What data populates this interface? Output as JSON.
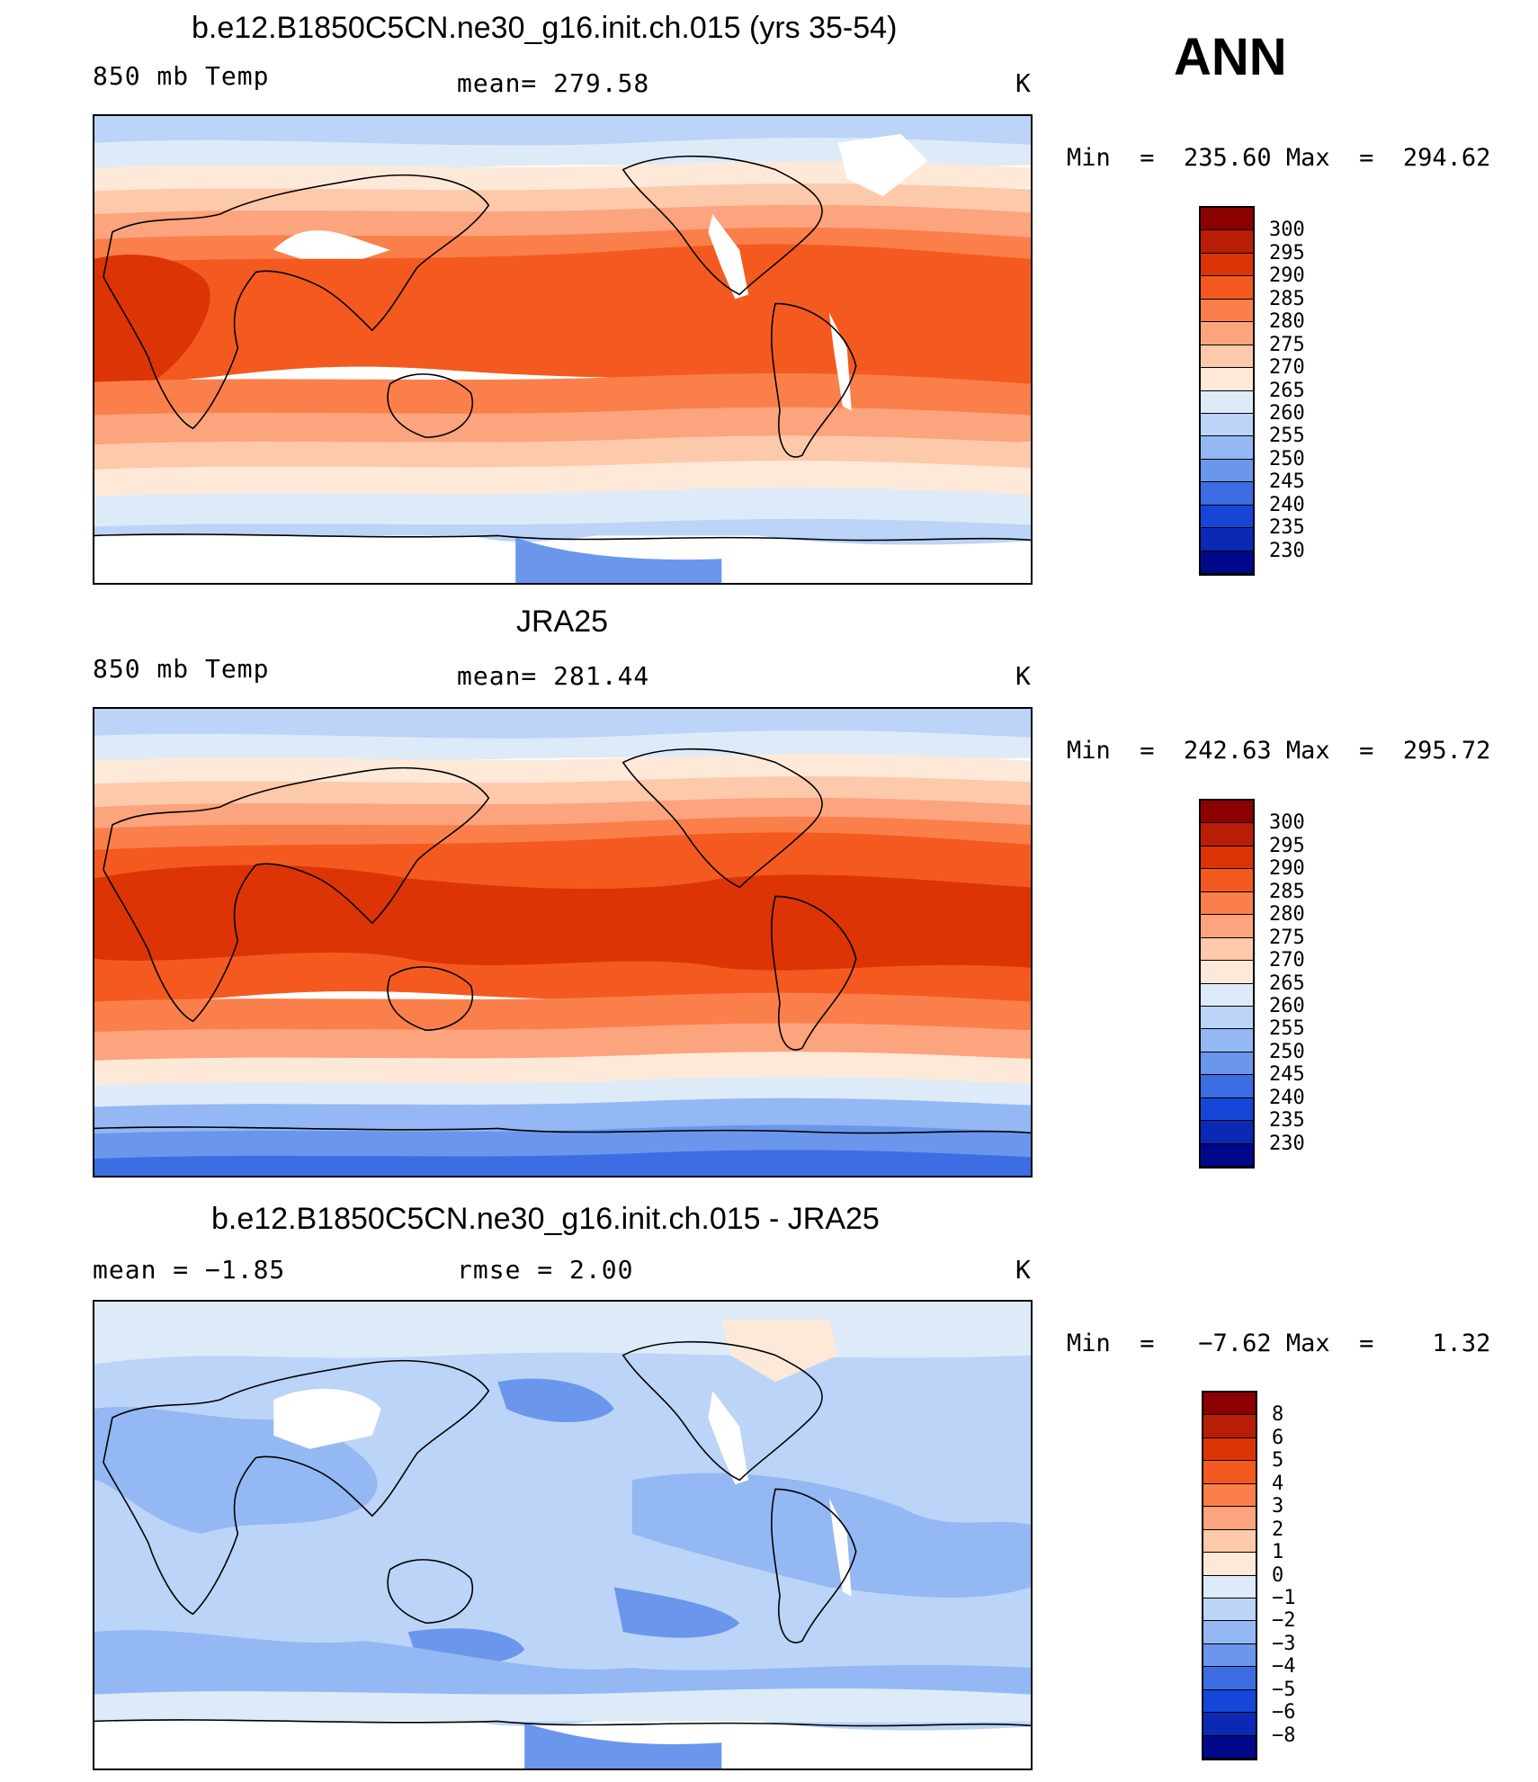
{
  "figure": {
    "season": "ANN"
  },
  "panels": [
    {
      "title": "b.e12.B1850C5CN.ne30_g16.init.ch.015 (yrs 35-54)",
      "left_label": "850 mb Temp",
      "center_label": "mean=  279.58",
      "unit": "K",
      "minmax": "Min  =  235.60 Max  =  294.62",
      "field": "model"
    },
    {
      "title": "JRA25",
      "left_label": "850 mb Temp",
      "center_label": "mean=  281.44",
      "unit": "K",
      "minmax": "Min  =  242.63 Max  =  295.72",
      "field": "obs"
    },
    {
      "title": "b.e12.B1850C5CN.ne30_g16.init.ch.015 - JRA25",
      "left_label": "mean =   −1.85",
      "center_label": "rmse =    2.00",
      "unit": "K",
      "minmax": "Min  =   −7.62 Max  =    1.32",
      "field": "diff"
    }
  ],
  "colorbars": [
    {
      "labels": [
        "300",
        "295",
        "290",
        "285",
        "280",
        "275",
        "270",
        "265",
        "260",
        "255",
        "250",
        "245",
        "240",
        "235",
        "230"
      ],
      "colors": [
        "#8b0000",
        "#b81e06",
        "#dd3406",
        "#f45a1f",
        "#fb7f4b",
        "#fca47e",
        "#fdc9ab",
        "#fee9d9",
        "#ddebf8",
        "#bcd4f7",
        "#93b8f3",
        "#6a97ec",
        "#3d6de2",
        "#1646d8",
        "#0a2ab6",
        "#00098a"
      ]
    },
    {
      "labels": [
        "300",
        "295",
        "290",
        "285",
        "280",
        "275",
        "270",
        "265",
        "260",
        "255",
        "250",
        "245",
        "240",
        "235",
        "230"
      ],
      "colors": [
        "#8b0000",
        "#b81e06",
        "#dd3406",
        "#f45a1f",
        "#fb7f4b",
        "#fca47e",
        "#fdc9ab",
        "#fee9d9",
        "#ddebf8",
        "#bcd4f7",
        "#93b8f3",
        "#6a97ec",
        "#3d6de2",
        "#1646d8",
        "#0a2ab6",
        "#00098a"
      ]
    },
    {
      "labels": [
        "8",
        "6",
        "5",
        "4",
        "3",
        "2",
        "1",
        "0",
        "−1",
        "−2",
        "−3",
        "−4",
        "−5",
        "−6",
        "−8"
      ],
      "colors": [
        "#8b0000",
        "#b81e06",
        "#dd3406",
        "#f45a1f",
        "#fb7f4b",
        "#fca47e",
        "#fdc9ab",
        "#fee9d9",
        "#ddebf8",
        "#bcd4f7",
        "#93b8f3",
        "#6a97ec",
        "#3d6de2",
        "#1646d8",
        "#0a2ab6",
        "#00098a"
      ]
    }
  ]
}
